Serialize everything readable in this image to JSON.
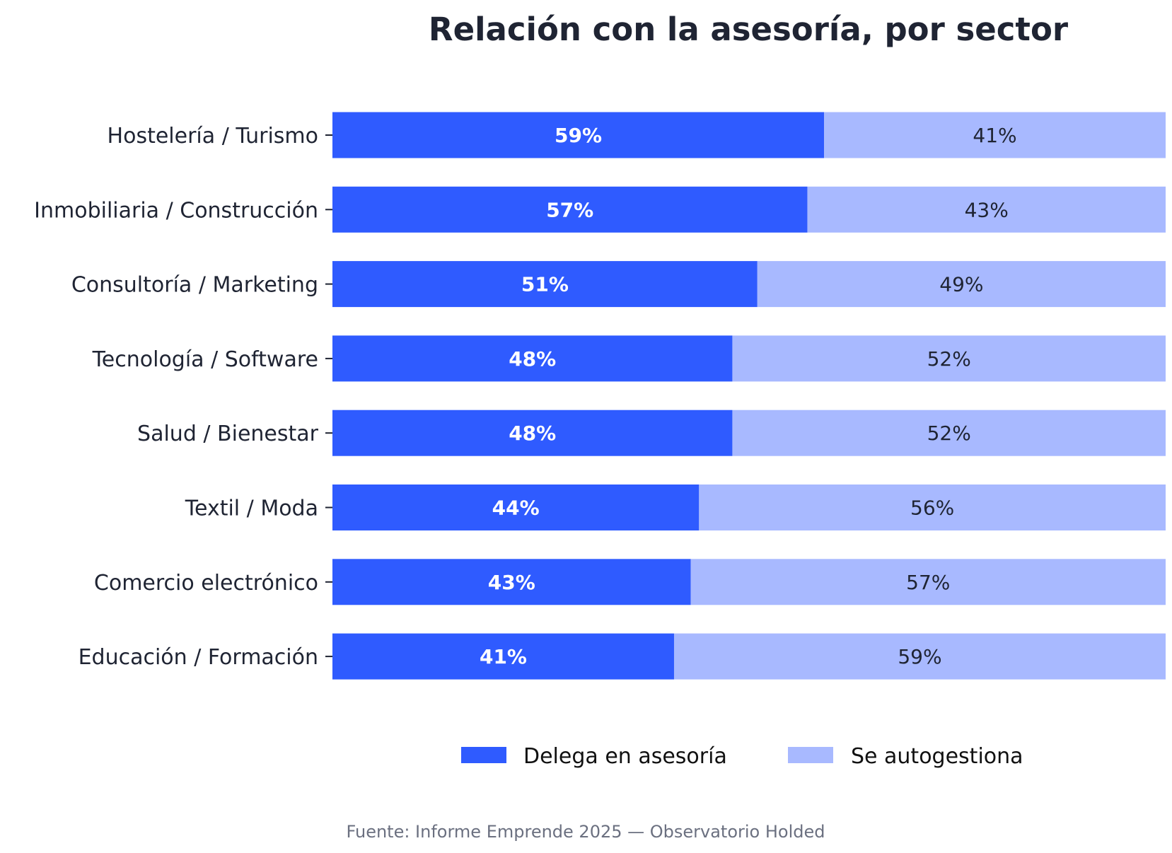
{
  "chart_data": {
    "type": "bar",
    "orientation": "horizontal",
    "stacked": true,
    "title": "Relación con la asesoría, por sector",
    "categories": [
      "Hostelería / Turismo",
      "Inmobiliaria / Construcción",
      "Consultoría / Marketing",
      "Tecnología / Software",
      "Salud / Bienestar",
      "Textil / Moda",
      "Comercio electrónico",
      "Educación / Formación"
    ],
    "series": [
      {
        "name": "Delega en asesoría",
        "color": "#2f5bff",
        "values": [
          59,
          57,
          51,
          48,
          48,
          44,
          43,
          41
        ],
        "labels": [
          "59%",
          "57%",
          "51%",
          "48%",
          "48%",
          "44%",
          "43%",
          "41%"
        ]
      },
      {
        "name": "Se autogestiona",
        "color": "#a8b9ff",
        "values": [
          41,
          43,
          49,
          52,
          52,
          56,
          57,
          59
        ],
        "labels": [
          "41%",
          "43%",
          "49%",
          "52%",
          "52%",
          "56%",
          "57%",
          "59%"
        ]
      }
    ],
    "xlim": [
      0,
      100
    ],
    "grid": false,
    "legend_position": "bottom-center"
  },
  "source": "Fuente: Informe Emprende 2025 — Observatorio Holded"
}
